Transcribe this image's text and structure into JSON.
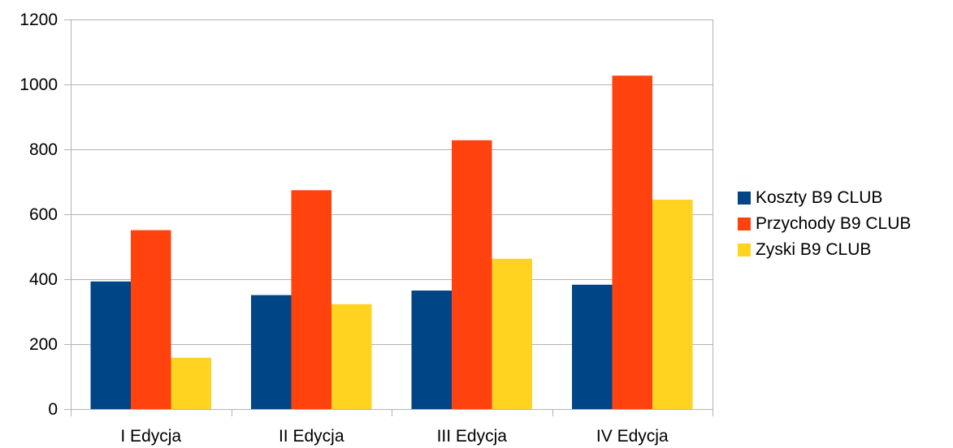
{
  "chart_data": {
    "type": "bar",
    "title": "",
    "xlabel": "",
    "ylabel": "",
    "ylim": [
      0,
      1200
    ],
    "yticks": [
      0,
      200,
      400,
      600,
      800,
      1000,
      1200
    ],
    "grid": true,
    "legend_position": "right",
    "categories": [
      "I Edycja",
      "II Edycja",
      "III Edycja",
      "IV Edycja"
    ],
    "series": [
      {
        "name": "Koszty B9 CLUB",
        "color": "#004586",
        "values": [
          393,
          351,
          365,
          383
        ]
      },
      {
        "name": "Przychody B9 CLUB",
        "color": "#ff420e",
        "values": [
          551,
          674,
          828,
          1027
        ]
      },
      {
        "name": "Zyski B9 CLUB",
        "color": "#ffd320",
        "values": [
          158,
          323,
          463,
          645
        ]
      }
    ]
  }
}
